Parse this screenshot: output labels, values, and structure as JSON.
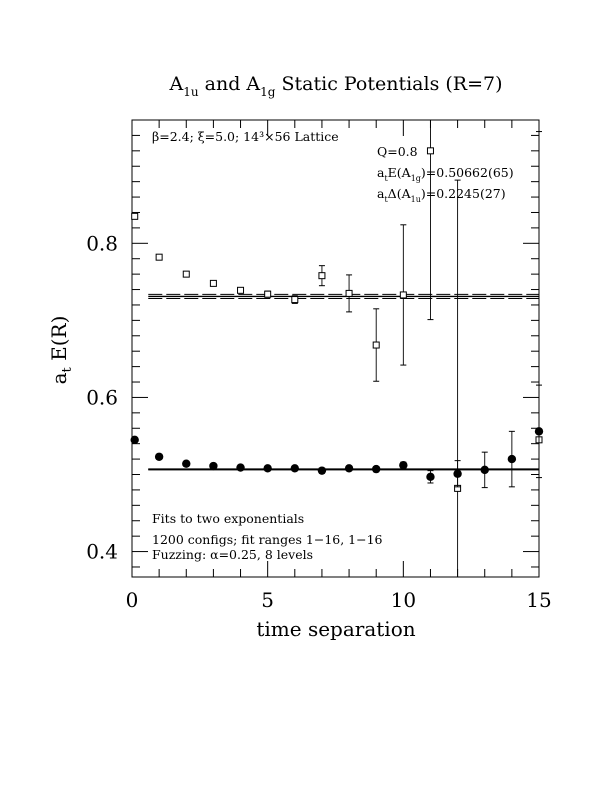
{
  "chart_data": {
    "type": "scatter",
    "title": {
      "main": "A",
      "sub1": "1u",
      "mid": " and A",
      "sub2": "1g",
      "tail": " Static Potentials (R=7)"
    },
    "xlabel": "time separation",
    "ylabel": {
      "main": "a",
      "sub": "t",
      "tail": " E(R)"
    },
    "xlim": [
      0,
      15
    ],
    "ylim": [
      0.367,
      0.96
    ],
    "xticks": [
      0,
      5,
      10,
      15
    ],
    "xtick_labels": [
      "0",
      "5",
      "10",
      "15"
    ],
    "yticks": [
      0.4,
      0.6,
      0.8
    ],
    "ytick_labels": [
      "0.4",
      "0.6",
      "0.8"
    ],
    "annotations": {
      "lattice": "β=2.4; ξ=5.0; 14³×56 Lattice",
      "q": "Q=0.8",
      "energy": {
        "pre": "a",
        "sub1": "t",
        "mid": "E(A",
        "sub2": "1g",
        "post": ")=0.50662(65)"
      },
      "gap": {
        "pre": "a",
        "sub1": "t",
        "mid": "Δ(A",
        "sub2": "1u",
        "post": ")=0.2245(27)"
      },
      "fits": "Fits to two exponentials",
      "configs": "1200 configs; fit ranges 1−16, 1−16",
      "fuzzing": "Fuzzing: α=0.25, 8 levels"
    },
    "series": [
      {
        "marker": "open-square",
        "x": [
          0.1,
          1,
          2,
          3,
          4,
          5,
          6,
          7,
          8,
          9,
          10,
          11,
          12,
          15
        ],
        "y": [
          0.835,
          0.782,
          0.76,
          0.748,
          0.739,
          0.734,
          0.727,
          0.758,
          0.735,
          0.668,
          0.733,
          0.92,
          0.482,
          0.545
        ],
        "err": [
          0.002,
          0.002,
          0.003,
          0.003,
          0.003,
          0.004,
          0.005,
          0.013,
          0.024,
          0.047,
          0.091,
          0.219,
          0.4,
          0.4
        ]
      },
      {
        "marker": "filled-circle",
        "x": [
          0.1,
          1,
          2,
          3,
          4,
          5,
          6,
          7,
          8,
          9,
          10,
          11,
          12,
          13,
          14,
          15
        ],
        "y": [
          0.545,
          0.523,
          0.514,
          0.511,
          0.509,
          0.508,
          0.508,
          0.505,
          0.508,
          0.507,
          0.512,
          0.497,
          0.501,
          0.506,
          0.52,
          0.556
        ],
        "err": [
          0.002,
          0.002,
          0.002,
          0.002,
          0.002,
          0.002,
          0.002,
          0.002,
          0.003,
          0.003,
          0.004,
          0.008,
          0.017,
          0.023,
          0.036,
          0.06
        ]
      }
    ],
    "fit_lines": [
      {
        "label": "A1u",
        "x": [
          0.6,
          15
        ],
        "y": 0.7311,
        "band": 0.0027
      },
      {
        "label": "A1g",
        "x": [
          0.6,
          15
        ],
        "y": 0.5066,
        "band": 0.00065
      }
    ],
    "frame": {
      "minor_x_step": 1,
      "minor_y_step": 0.1
    }
  }
}
